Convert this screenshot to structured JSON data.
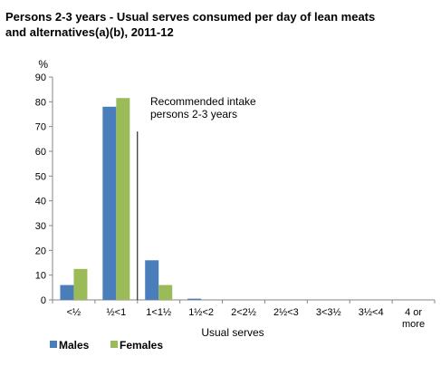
{
  "chart_data": {
    "type": "bar",
    "title": "Persons 2-3 years - Usual serves consumed per day of lean meats and alternatives(a)(b), 2011-12",
    "ylabel": "%",
    "xlabel": "Usual serves",
    "ylim": [
      0,
      90
    ],
    "yticks": [
      "0",
      "10",
      "20",
      "30",
      "40",
      "50",
      "60",
      "70",
      "80",
      "90"
    ],
    "categories": [
      "<½",
      "½<1",
      "1<1½",
      "1½<2",
      "2<2½",
      "2½<3",
      "3<3½",
      "3½<4",
      "4 or more"
    ],
    "category_lines": [
      [
        "<½"
      ],
      [
        "½<1"
      ],
      [
        "1<1½"
      ],
      [
        "1½<2"
      ],
      [
        "2<2½"
      ],
      [
        "2½<3"
      ],
      [
        "3<3½"
      ],
      [
        "3½<4"
      ],
      [
        "4 or",
        "more"
      ]
    ],
    "series": [
      {
        "name": "Males",
        "color": "#4a7ebb",
        "values": [
          6,
          78,
          16,
          0.5,
          0,
          0,
          0,
          0,
          0
        ]
      },
      {
        "name": "Females",
        "color": "#9bbb59",
        "values": [
          12.5,
          81.5,
          6,
          0,
          0,
          0,
          0,
          0,
          0
        ]
      }
    ],
    "annotation": {
      "lines": [
        "Recommended intake",
        "persons 2-3 years"
      ],
      "at_category_boundary": 2,
      "top_value": 68
    },
    "legend_position": "bottom-left",
    "grid": false
  }
}
